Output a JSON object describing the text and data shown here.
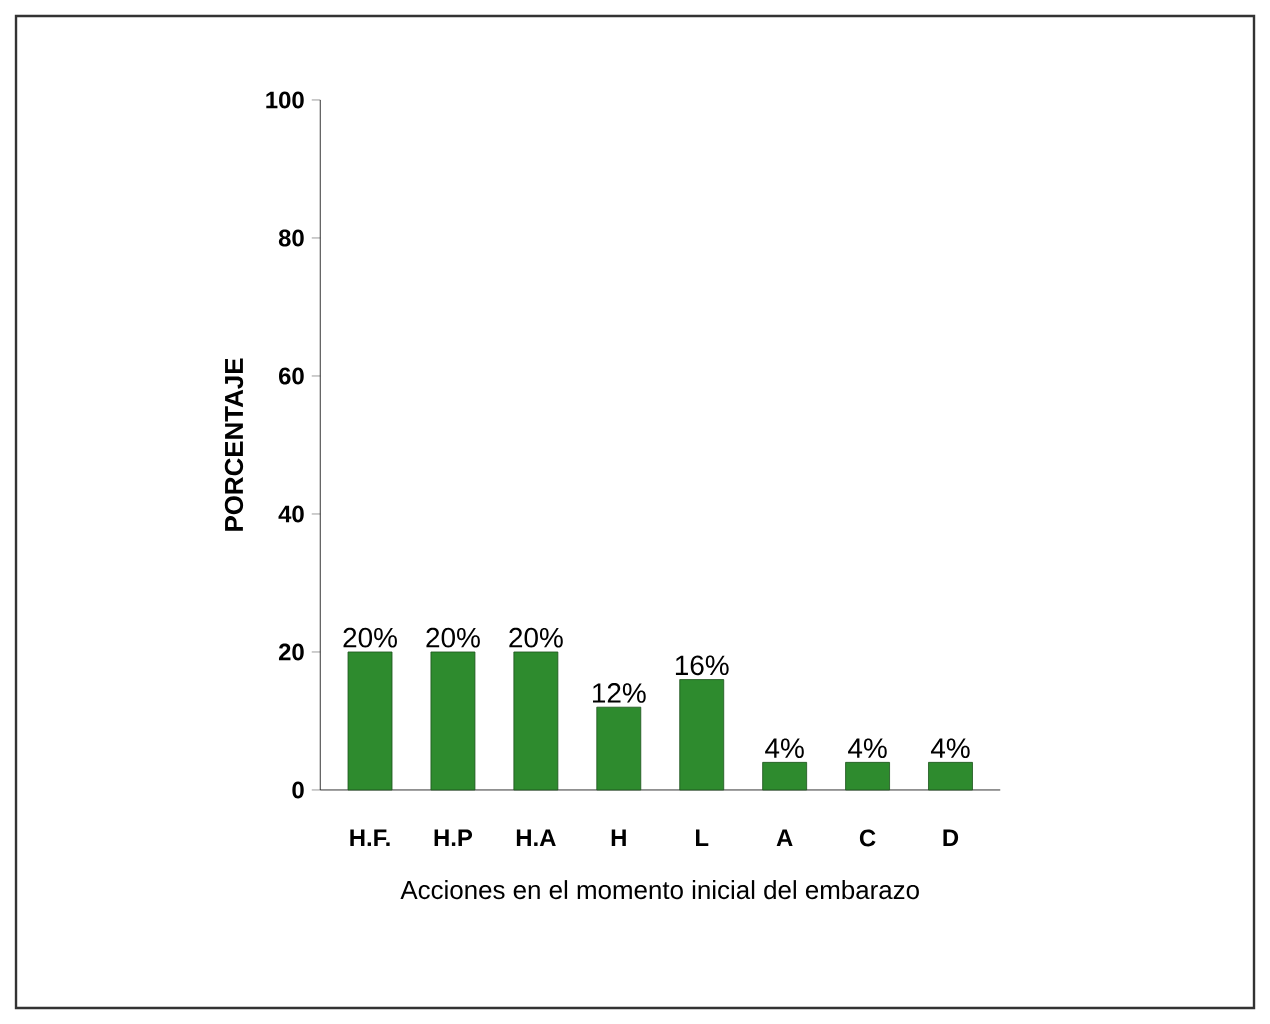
{
  "chart_data": {
    "type": "bar",
    "xlabel": "Acciones en el momento inicial del embarazo",
    "ylabel": "PORCENTAJE",
    "categories": [
      "H.F.",
      "H.P",
      "H.A",
      "H",
      "L",
      "A",
      "C",
      "D"
    ],
    "values": [
      20,
      20,
      20,
      12,
      16,
      4,
      4,
      4
    ],
    "value_labels": [
      "20%",
      "20%",
      "20%",
      "12%",
      "16%",
      "4%",
      "4%",
      "4%"
    ],
    "color": "#2e8b2e",
    "ylim": [
      0,
      100
    ],
    "yticks": [
      0,
      20,
      40,
      60,
      80,
      100
    ],
    "grid": false
  }
}
